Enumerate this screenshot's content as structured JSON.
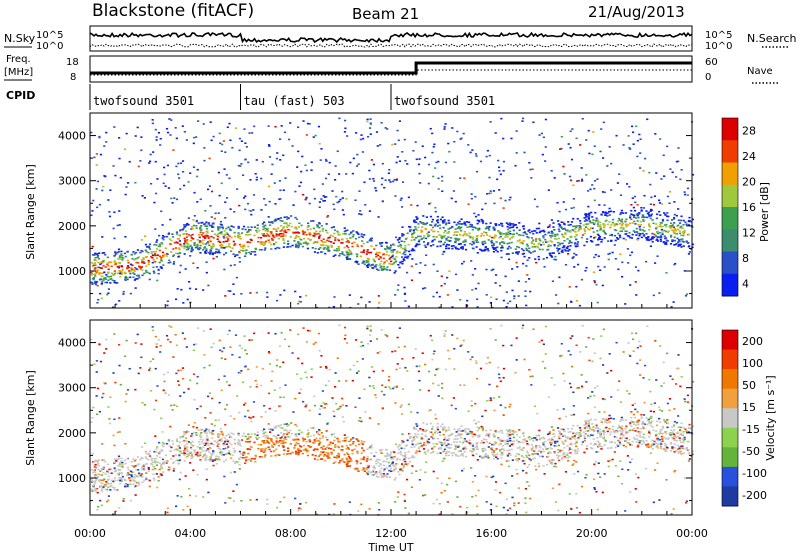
{
  "header": {
    "station": "Blackstone (fitACF)",
    "beam": "Beam 21",
    "date": "21/Aug/2013"
  },
  "panel_labels": {
    "nsky": "N.Sky",
    "nsearch": "N.Search",
    "freq": "Freq.",
    "freq_unit": "[MHz]",
    "nave": "Nave",
    "cpid": "CPID",
    "nsky_ticks": [
      "10^5",
      "10^0"
    ],
    "nsearch_ticks": [
      "10^5",
      "10^0"
    ],
    "freq_ticks": [
      "18",
      "8"
    ],
    "nave_ticks": [
      "60",
      "0"
    ]
  },
  "cpid_segments": [
    {
      "label": "twofsound 3501",
      "start": 0,
      "end": 6
    },
    {
      "label": "tau (fast) 503",
      "start": 6,
      "end": 12
    },
    {
      "label": "twofsound 3501",
      "start": 12,
      "end": 24
    }
  ],
  "chart_data": [
    {
      "type": "heatmap",
      "name": "power",
      "ylabel": "Slant Range [km]",
      "xlim": [
        0,
        24
      ],
      "ylim": [
        180,
        4500
      ],
      "yticks": [
        1000,
        2000,
        3000,
        4000
      ],
      "colorbar_label": "Power [dB]",
      "colorbar_ticks": [
        "28",
        "24",
        "20",
        "16",
        "12",
        "8",
        "4"
      ],
      "colors": [
        "#0a1ef0",
        "#2a50c8",
        "#3c8c6e",
        "#3ca050",
        "#a0c83c",
        "#f0a000",
        "#f03c00",
        "#dc0000"
      ],
      "main_echo_band_km": [
        [
          0,
          1050
        ],
        [
          2,
          1150
        ],
        [
          4,
          1800
        ],
        [
          6,
          1650
        ],
        [
          8,
          1900
        ],
        [
          10,
          1650
        ],
        [
          12,
          1250
        ],
        [
          13,
          1900
        ],
        [
          16,
          1800
        ],
        [
          18,
          1600
        ],
        [
          20,
          2000
        ],
        [
          22,
          2050
        ],
        [
          24,
          1850
        ]
      ]
    },
    {
      "type": "heatmap",
      "name": "velocity",
      "ylabel": "Slant Range [km]",
      "xlabel": "Time UT",
      "xlim": [
        0,
        24
      ],
      "ylim": [
        180,
        4500
      ],
      "yticks": [
        1000,
        2000,
        3000,
        4000
      ],
      "xticks": [
        "00:00",
        "04:00",
        "08:00",
        "12:00",
        "16:00",
        "20:00",
        "00:00"
      ],
      "colorbar_label": "Velocity [m s⁻¹]",
      "colorbar_ticks": [
        "200",
        "100",
        "50",
        "15",
        "-15",
        "-50",
        "-100",
        "-200"
      ],
      "colors": [
        "#1e3ca0",
        "#2850dc",
        "#64b43c",
        "#8cd250",
        "#c8c8c8",
        "#f0a03c",
        "#f07800",
        "#f03c00",
        "#dc0000"
      ]
    }
  ]
}
